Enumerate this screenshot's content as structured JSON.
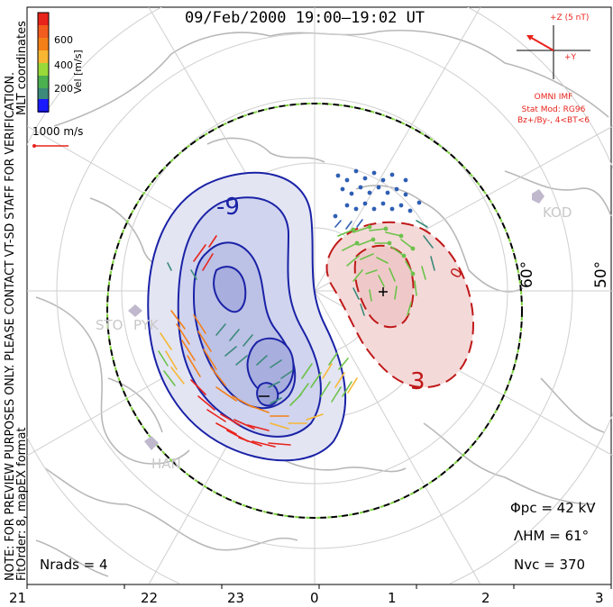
{
  "header": {
    "title": "09/Feb/2000 19:00–19:02 UT"
  },
  "side_note": {
    "line1": "NOTE: FOR PREVIEW PURPOSES ONLY. PLEASE CONTACT VT-SD STAFF FOR VERIFICATION.",
    "line2": "FitOrder: 8,  mapEX format",
    "mlt": "MLT coordinates"
  },
  "colorbar": {
    "title": "Vel [m/s]",
    "ticks": [
      "600",
      "400",
      "200"
    ],
    "colors": [
      "#e8231c",
      "#f57f17",
      "#f7b733",
      "#9ad93a",
      "#4caf50",
      "#3c8a7a",
      "#2f5fb3",
      "#1a1aff"
    ]
  },
  "scale_vector": {
    "label": "1000 m/s"
  },
  "imf": {
    "z_label": "+Z (5 nT)",
    "y_label": "+Y",
    "line1": "OMNI IMF",
    "line2": "Stat Mod: RG96",
    "line3": "Bz+/By-, 4<BT<6"
  },
  "contours": {
    "neg_label": "-9",
    "pos_label": "3",
    "pos_label2": "0",
    "neg_color": "#1a22a6",
    "pos_color": "#c01818"
  },
  "lat_labels": [
    "60°",
    "50°"
  ],
  "stations": [
    "KOD",
    "STO",
    "PYK",
    "HAN"
  ],
  "stats": {
    "phi_pc": "Φpc = 42 kV",
    "lambda_hm": "ΛHM = 61°",
    "n_vc": "Nvc = 370",
    "n_rads": "Nrads = 4"
  },
  "mlt_axis": [
    "21",
    "22",
    "23",
    "0",
    "1",
    "2",
    "3"
  ]
}
